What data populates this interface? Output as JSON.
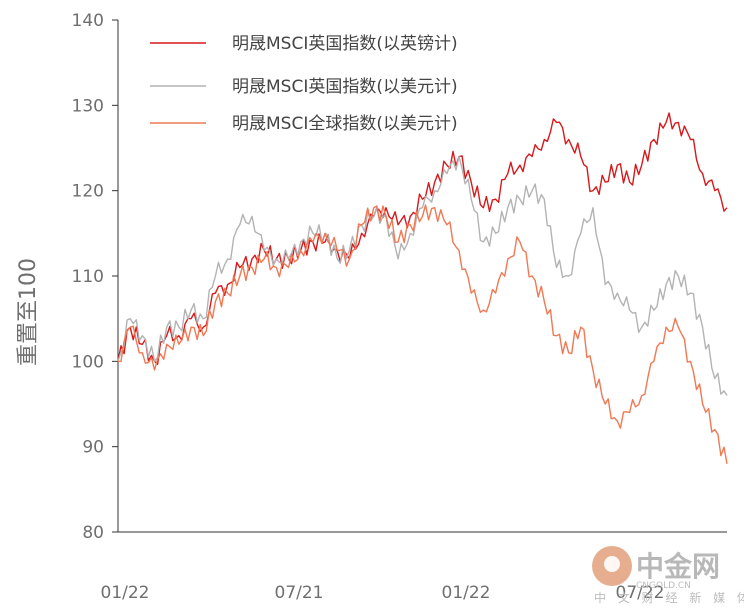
{
  "chart_data": {
    "type": "line",
    "ylabel": "重置至100",
    "ylim": [
      80,
      140
    ],
    "y_ticks": [
      80,
      90,
      100,
      110,
      120,
      130,
      140
    ],
    "x_tick_labels": [
      "01/22",
      "07/21",
      "01/22",
      "07/22"
    ],
    "legend_position": "top-left",
    "grid": false,
    "series": [
      {
        "name": "明晟MSCI英国指数(以英镑计)",
        "color": "#d7191c",
        "x": [
          0,
          2,
          4,
          6,
          8,
          10,
          12,
          14,
          16,
          18,
          20,
          22,
          24,
          26,
          28,
          30,
          32,
          34,
          36,
          38,
          40,
          42,
          44,
          46,
          48,
          50,
          52,
          54,
          56,
          58,
          60,
          62,
          64,
          66,
          68,
          70,
          72,
          74,
          76,
          78,
          80,
          82,
          84,
          86,
          88,
          90,
          92,
          94,
          96,
          98,
          100
        ],
        "y": [
          100,
          104,
          102,
          100,
          103,
          103,
          105,
          104,
          108,
          109,
          111,
          112,
          113,
          112,
          112,
          113,
          114,
          114,
          113,
          112,
          115,
          117,
          118,
          116,
          117,
          119,
          121,
          123,
          124,
          121,
          118,
          119,
          122,
          123,
          124,
          126,
          128,
          126,
          124,
          120,
          121,
          123,
          121,
          123,
          126,
          128,
          128,
          126,
          122,
          120,
          118
        ]
      },
      {
        "name": "明晟MSCI英国指数(以美元计)",
        "color": "#b3b3b3",
        "x": [
          0,
          2,
          4,
          6,
          8,
          10,
          12,
          14,
          16,
          18,
          20,
          22,
          24,
          26,
          28,
          30,
          32,
          34,
          36,
          38,
          40,
          42,
          44,
          46,
          48,
          50,
          52,
          54,
          56,
          58,
          60,
          62,
          64,
          66,
          68,
          70,
          72,
          74,
          76,
          78,
          80,
          82,
          84,
          86,
          88,
          90,
          92,
          94,
          96,
          98,
          100
        ],
        "y": [
          100,
          105,
          103,
          100,
          104,
          104,
          106,
          105,
          110,
          112,
          116,
          117,
          113,
          112,
          112,
          114,
          115,
          115,
          112,
          113,
          116,
          117,
          117,
          112,
          115,
          118,
          120,
          122,
          124,
          119,
          114,
          115,
          118,
          119,
          120,
          119,
          111,
          110,
          115,
          118,
          109,
          108,
          106,
          104,
          106,
          109,
          110,
          108,
          104,
          98,
          96
        ]
      },
      {
        "name": "明晟MSCI全球指数(以美元计)",
        "color": "#f07853",
        "x": [
          0,
          2,
          4,
          6,
          8,
          10,
          12,
          14,
          16,
          18,
          20,
          22,
          24,
          26,
          28,
          30,
          32,
          34,
          36,
          38,
          40,
          42,
          44,
          46,
          48,
          50,
          52,
          54,
          56,
          58,
          60,
          62,
          64,
          66,
          68,
          70,
          72,
          74,
          76,
          78,
          80,
          82,
          84,
          86,
          88,
          90,
          92,
          94,
          96,
          98,
          100
        ],
        "y": [
          100,
          104,
          101,
          99,
          102,
          102,
          104,
          103,
          107,
          108,
          110,
          111,
          112,
          111,
          111,
          113,
          114,
          115,
          113,
          112,
          116,
          118,
          117,
          114,
          116,
          117,
          118,
          116,
          113,
          108,
          106,
          108,
          112,
          114,
          110,
          107,
          103,
          101,
          104,
          99,
          95,
          93,
          94,
          96,
          100,
          104,
          104,
          100,
          95,
          92,
          88
        ]
      }
    ]
  },
  "watermark": {
    "brand": "中金网",
    "site": "CNGOLD.CN",
    "tagline": "中 文 财 经 新 媒 体"
  }
}
